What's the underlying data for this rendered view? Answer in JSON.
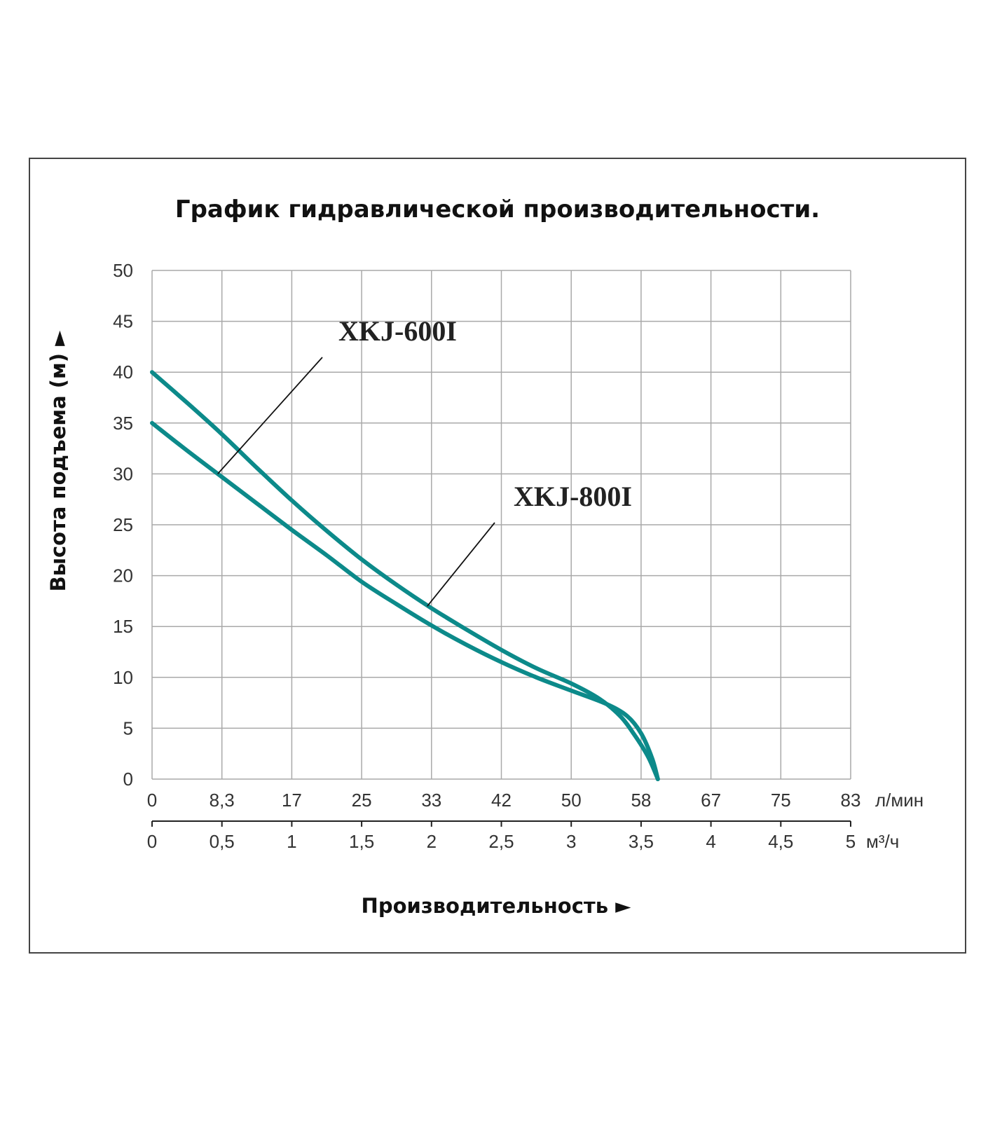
{
  "chart_data": {
    "type": "line",
    "title": "График гидравлической производительности.",
    "ylabel": "Высота подъема (м) ►",
    "xlabel": "Производительность ►",
    "ylim": [
      0,
      50
    ],
    "yticks": [
      "0",
      "5",
      "10",
      "15",
      "20",
      "25",
      "30",
      "35",
      "40",
      "45",
      "50"
    ],
    "xlim": [
      0,
      5
    ],
    "x_unit": "м³/ч",
    "x_ticks_m3h": [
      {
        "v": 0,
        "label": "0"
      },
      {
        "v": 0.5,
        "label": "0,5"
      },
      {
        "v": 1,
        "label": "1"
      },
      {
        "v": 1.5,
        "label": "1,5"
      },
      {
        "v": 2,
        "label": "2"
      },
      {
        "v": 2.5,
        "label": "2,5"
      },
      {
        "v": 3,
        "label": "3"
      },
      {
        "v": 3.5,
        "label": "3,5"
      },
      {
        "v": 4,
        "label": "4"
      },
      {
        "v": 4.5,
        "label": "4,5"
      },
      {
        "v": 5,
        "label": "5"
      }
    ],
    "x_unit_lmin": "л/мин",
    "x_ticks_lmin": [
      "0",
      "8,3",
      "17",
      "25",
      "33",
      "42",
      "50",
      "58",
      "67",
      "75",
      "83"
    ],
    "m3h_unit_label": "м³/ч",
    "grid": true,
    "series": [
      {
        "name": "XKJ-600I",
        "color": "#0c8a8a",
        "points": [
          [
            0,
            35
          ],
          [
            0.25,
            32.3
          ],
          [
            0.5,
            29.7
          ],
          [
            0.75,
            27.1
          ],
          [
            1,
            24.5
          ],
          [
            1.25,
            22.0
          ],
          [
            1.5,
            19.4
          ],
          [
            1.75,
            17.2
          ],
          [
            2,
            15.1
          ],
          [
            2.25,
            13.2
          ],
          [
            2.5,
            11.5
          ],
          [
            2.75,
            10.0
          ],
          [
            3,
            8.7
          ],
          [
            3.25,
            7.4
          ],
          [
            3.4,
            6.2
          ],
          [
            3.5,
            4.5
          ],
          [
            3.58,
            2.0
          ],
          [
            3.62,
            0
          ]
        ]
      },
      {
        "name": "XKJ-800I",
        "color": "#0c8a8a",
        "points": [
          [
            0,
            40
          ],
          [
            0.25,
            37.0
          ],
          [
            0.5,
            33.9
          ],
          [
            0.75,
            30.6
          ],
          [
            1,
            27.4
          ],
          [
            1.25,
            24.4
          ],
          [
            1.5,
            21.6
          ],
          [
            1.75,
            19.1
          ],
          [
            2,
            16.8
          ],
          [
            2.25,
            14.7
          ],
          [
            2.5,
            12.7
          ],
          [
            2.75,
            10.9
          ],
          [
            3,
            9.4
          ],
          [
            3.2,
            7.9
          ],
          [
            3.35,
            6.2
          ],
          [
            3.45,
            4.4
          ],
          [
            3.55,
            2.2
          ],
          [
            3.62,
            0
          ]
        ]
      }
    ],
    "annotations": [
      {
        "text": "XKJ-600I",
        "anchor": [
          0.47,
          30
        ]
      },
      {
        "text": "XKJ-800I",
        "anchor": [
          1.97,
          17
        ]
      }
    ]
  }
}
